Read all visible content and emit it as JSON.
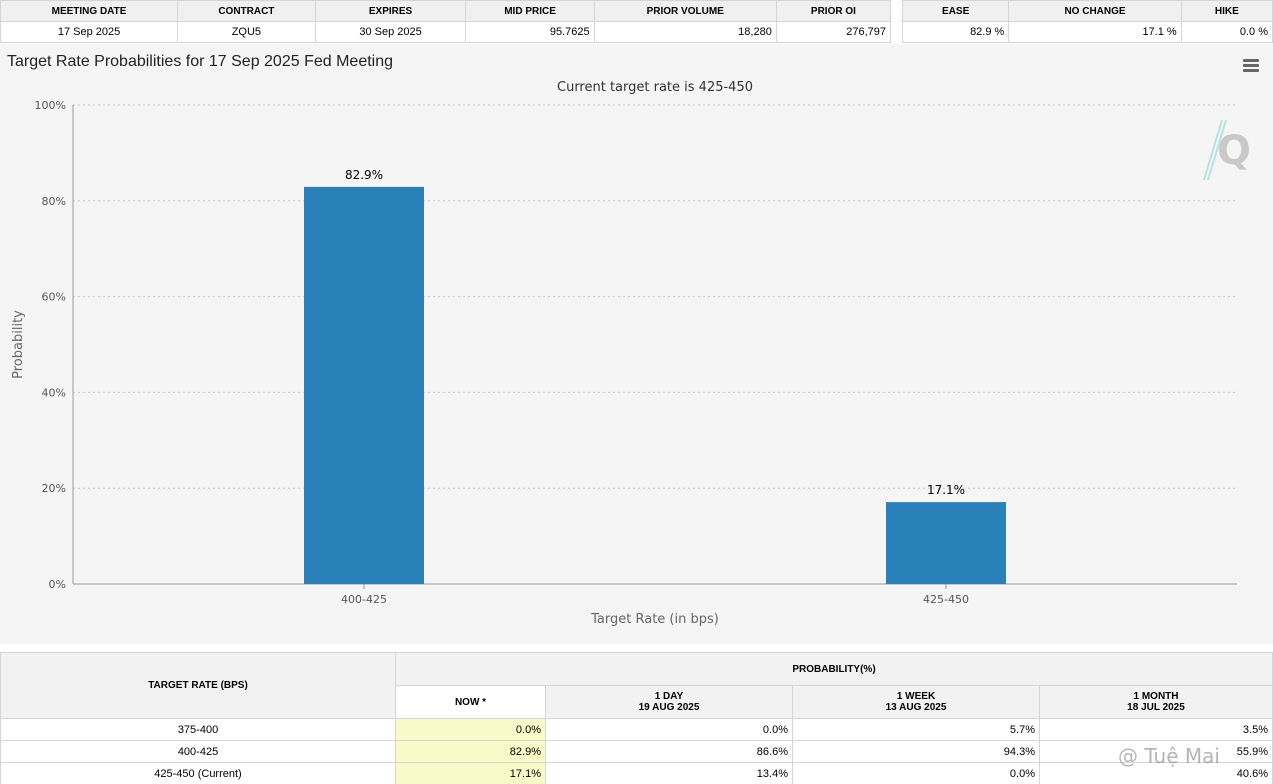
{
  "summary": {
    "headers": [
      "MEETING DATE",
      "CONTRACT",
      "EXPIRES",
      "MID PRICE",
      "PRIOR VOLUME",
      "PRIOR OI"
    ],
    "values": [
      "17 Sep 2025",
      "ZQU5",
      "30 Sep 2025",
      "95.7625",
      "18,280",
      "276,797"
    ]
  },
  "prob_summary": {
    "headers": [
      "EASE",
      "NO CHANGE",
      "HIKE"
    ],
    "values": [
      "82.9 %",
      "17.1 %",
      "0.0 %"
    ]
  },
  "chart": {
    "menu_icon": "hamburger-menu-icon",
    "logo_icon": "q-logo-icon"
  },
  "chart_data": {
    "type": "bar",
    "title": "Target Rate Probabilities for 17 Sep 2025 Fed Meeting",
    "subtitle": "Current target rate is 425-450",
    "categories": [
      "400-425",
      "425-450"
    ],
    "values": [
      82.9,
      17.1
    ],
    "value_labels": [
      "82.9%",
      "17.1%"
    ],
    "xlabel": "Target Rate (in bps)",
    "ylabel": "Probability",
    "ylim": [
      0,
      100
    ],
    "yticks": [
      "0%",
      "20%",
      "40%",
      "60%",
      "80%",
      "100%"
    ],
    "grid": true,
    "bar_color": "#2a80b9"
  },
  "prob_table": {
    "col_target": "TARGET RATE (BPS)",
    "col_prob": "PROBABILITY(%)",
    "col_now": "NOW *",
    "col_1day": "1 DAY",
    "col_1day_date": "19 AUG 2025",
    "col_1week": "1 WEEK",
    "col_1week_date": "13 AUG 2025",
    "col_1month": "1 MONTH",
    "col_1month_date": "18 JUL 2025",
    "rows": [
      {
        "rate": "375-400",
        "now": "0.0%",
        "day": "0.0%",
        "week": "5.7%",
        "month": "3.5%"
      },
      {
        "rate": "400-425",
        "now": "82.9%",
        "day": "86.6%",
        "week": "94.3%",
        "month": "55.9%"
      },
      {
        "rate": "425-450 (Current)",
        "now": "17.1%",
        "day": "13.4%",
        "week": "0.0%",
        "month": "40.6%"
      }
    ]
  },
  "footer": {
    "watermark": "@ Tuệ Mai"
  }
}
